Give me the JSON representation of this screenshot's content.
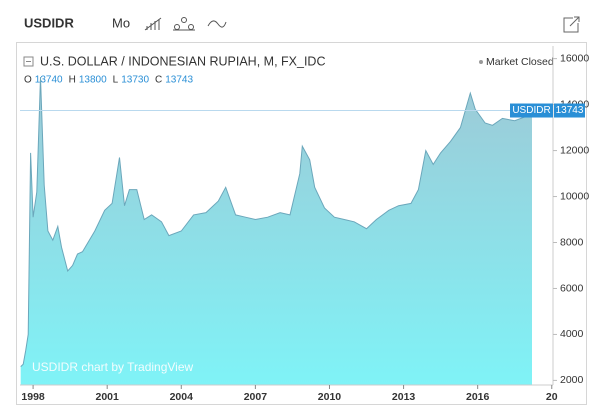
{
  "header": {
    "symbol": "USDIDR",
    "interval": "Mo"
  },
  "chart_data": {
    "type": "area",
    "title": "U.S. DOLLAR / INDONESIAN RUPIAH, M, FX_IDC",
    "status": "Market Closed",
    "ohlc": {
      "labels": [
        "O",
        "H",
        "L",
        "C"
      ],
      "values": [
        13740,
        13800,
        13730,
        13743
      ]
    },
    "last_label": "USDIDR",
    "last_value": 13743,
    "watermark": "USDIDR chart by TradingView",
    "line_color": "#6ba7bb",
    "fill_top": "#9ec9d6",
    "fill_bottom": "#7ff3f7",
    "grid": false,
    "x": [
      1997.5,
      1997.6,
      1997.7,
      1997.8,
      1997.9,
      1998.0,
      1998.15,
      1998.3,
      1998.45,
      1998.6,
      1998.8,
      1999.0,
      1999.15,
      1999.4,
      1999.6,
      1999.8,
      2000.0,
      2000.5,
      2000.9,
      2001.2,
      2001.5,
      2001.7,
      2001.9,
      2002.2,
      2002.5,
      2002.8,
      2003.2,
      2003.5,
      2004.0,
      2004.5,
      2005.0,
      2005.5,
      2005.8,
      2006.2,
      2006.6,
      2007.0,
      2007.5,
      2008.0,
      2008.4,
      2008.8,
      2008.9,
      2009.2,
      2009.4,
      2009.8,
      2010.2,
      2010.6,
      2011.0,
      2011.5,
      2011.9,
      2012.4,
      2012.8,
      2013.3,
      2013.6,
      2013.9,
      2014.2,
      2014.5,
      2014.9,
      2015.3,
      2015.7,
      2015.9,
      2016.3,
      2016.6,
      2017.0,
      2017.5,
      2018.0,
      2018.2
    ],
    "values": [
      2600,
      2700,
      3300,
      4000,
      11900,
      9100,
      10200,
      15200,
      10500,
      8500,
      8100,
      8700,
      7800,
      6760,
      7000,
      7500,
      7600,
      8500,
      9400,
      9700,
      11700,
      9600,
      10300,
      10300,
      9000,
      9200,
      8900,
      8300,
      8500,
      9200,
      9300,
      9800,
      10400,
      9200,
      9100,
      9000,
      9100,
      9300,
      9200,
      11000,
      12190,
      11600,
      10400,
      9500,
      9100,
      9000,
      8900,
      8600,
      9000,
      9400,
      9600,
      9700,
      10300,
      12000,
      11400,
      11900,
      12400,
      13000,
      14500,
      13800,
      13200,
      13100,
      13400,
      13300,
      13500,
      13743
    ],
    "xlim": [
      1997.47,
      2019.05
    ],
    "xticks": [
      1998,
      2001,
      2004,
      2007,
      2010,
      2013,
      2016,
      {
        "value": 2019,
        "label": "20"
      }
    ],
    "ylim": [
      1800,
      16550
    ],
    "yticks": [
      2000,
      4000,
      6000,
      8000,
      10000,
      12000,
      14000,
      16000
    ]
  }
}
